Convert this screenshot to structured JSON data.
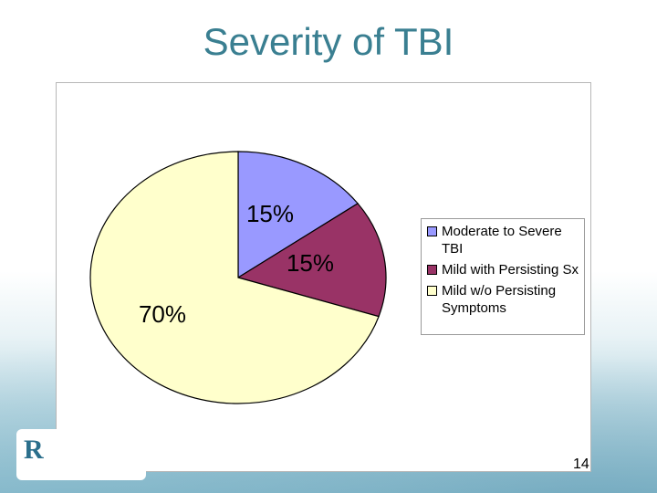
{
  "slide": {
    "title": "Severity of TBI",
    "page_number": "14"
  },
  "chart_data": {
    "type": "pie",
    "title": "",
    "slices": [
      {
        "label": "Moderate to Severe TBI",
        "value": 15,
        "display": "15%",
        "color": "#9999ff"
      },
      {
        "label": "Mild with Persisting Sx",
        "value": 15,
        "display": "15%",
        "color": "#993366"
      },
      {
        "label": "Mild w/o Persisting Symptoms",
        "value": 70,
        "display": "70%",
        "color": "#ffffcc"
      }
    ],
    "start_angle_deg": 0,
    "direction": "clockwise",
    "legend_placement": "right"
  },
  "logo": {
    "icon": "organization-logo-icon"
  }
}
